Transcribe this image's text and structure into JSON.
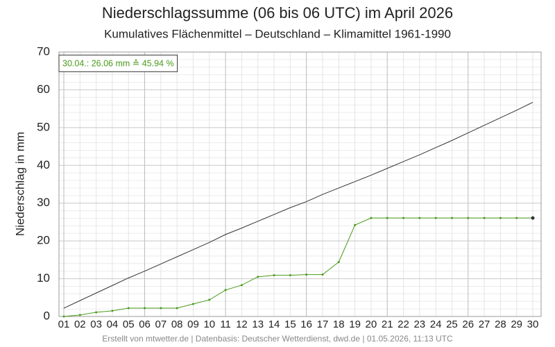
{
  "chart_data": {
    "type": "line",
    "title": "Niederschlagssumme (06 bis 06 UTC) im April 2026",
    "subtitle": "Kumulatives Flächenmittel – Deutschland – Klimamittel 1961-1990",
    "ylabel": "Niederschlag in mm",
    "annotation": "30.04.: 26.06 mm ≙ 45.94 %",
    "footer": "Erstellt von mtwetter.de | Datenbasis: Deutscher Wetterdienst, dwd.de | 01.05.2026, 11:13 UTC",
    "categories": [
      "01",
      "02",
      "03",
      "04",
      "05",
      "06",
      "07",
      "08",
      "09",
      "10",
      "11",
      "12",
      "13",
      "14",
      "15",
      "16",
      "17",
      "18",
      "19",
      "20",
      "21",
      "22",
      "23",
      "24",
      "25",
      "26",
      "27",
      "28",
      "29",
      "30"
    ],
    "series": [
      {
        "name": "Klimamittel",
        "color": "#333333",
        "markers": false,
        "values": [
          2.2,
          4.2,
          6.2,
          8.2,
          10.2,
          12.0,
          13.9,
          15.8,
          17.7,
          19.6,
          21.7,
          23.4,
          25.2,
          27.0,
          28.8,
          30.4,
          32.3,
          34.0,
          35.7,
          37.4,
          39.2,
          41.0,
          42.8,
          44.7,
          46.6,
          48.6,
          50.6,
          52.6,
          54.6,
          56.7
        ]
      },
      {
        "name": "2026",
        "color": "#4a9a1a",
        "markers": true,
        "values": [
          0,
          0.4,
          1.1,
          1.5,
          2.2,
          2.2,
          2.2,
          2.2,
          3.3,
          4.4,
          7.0,
          8.3,
          10.5,
          10.9,
          10.9,
          11.1,
          11.1,
          14.4,
          24.2,
          26.06,
          26.06,
          26.06,
          26.06,
          26.06,
          26.06,
          26.06,
          26.06,
          26.06,
          26.06,
          26.06
        ]
      }
    ],
    "ylim": [
      0,
      70
    ],
    "yticks": [
      0,
      10,
      20,
      30,
      40,
      50,
      60,
      70
    ],
    "grid": true,
    "minor_grid": true
  }
}
